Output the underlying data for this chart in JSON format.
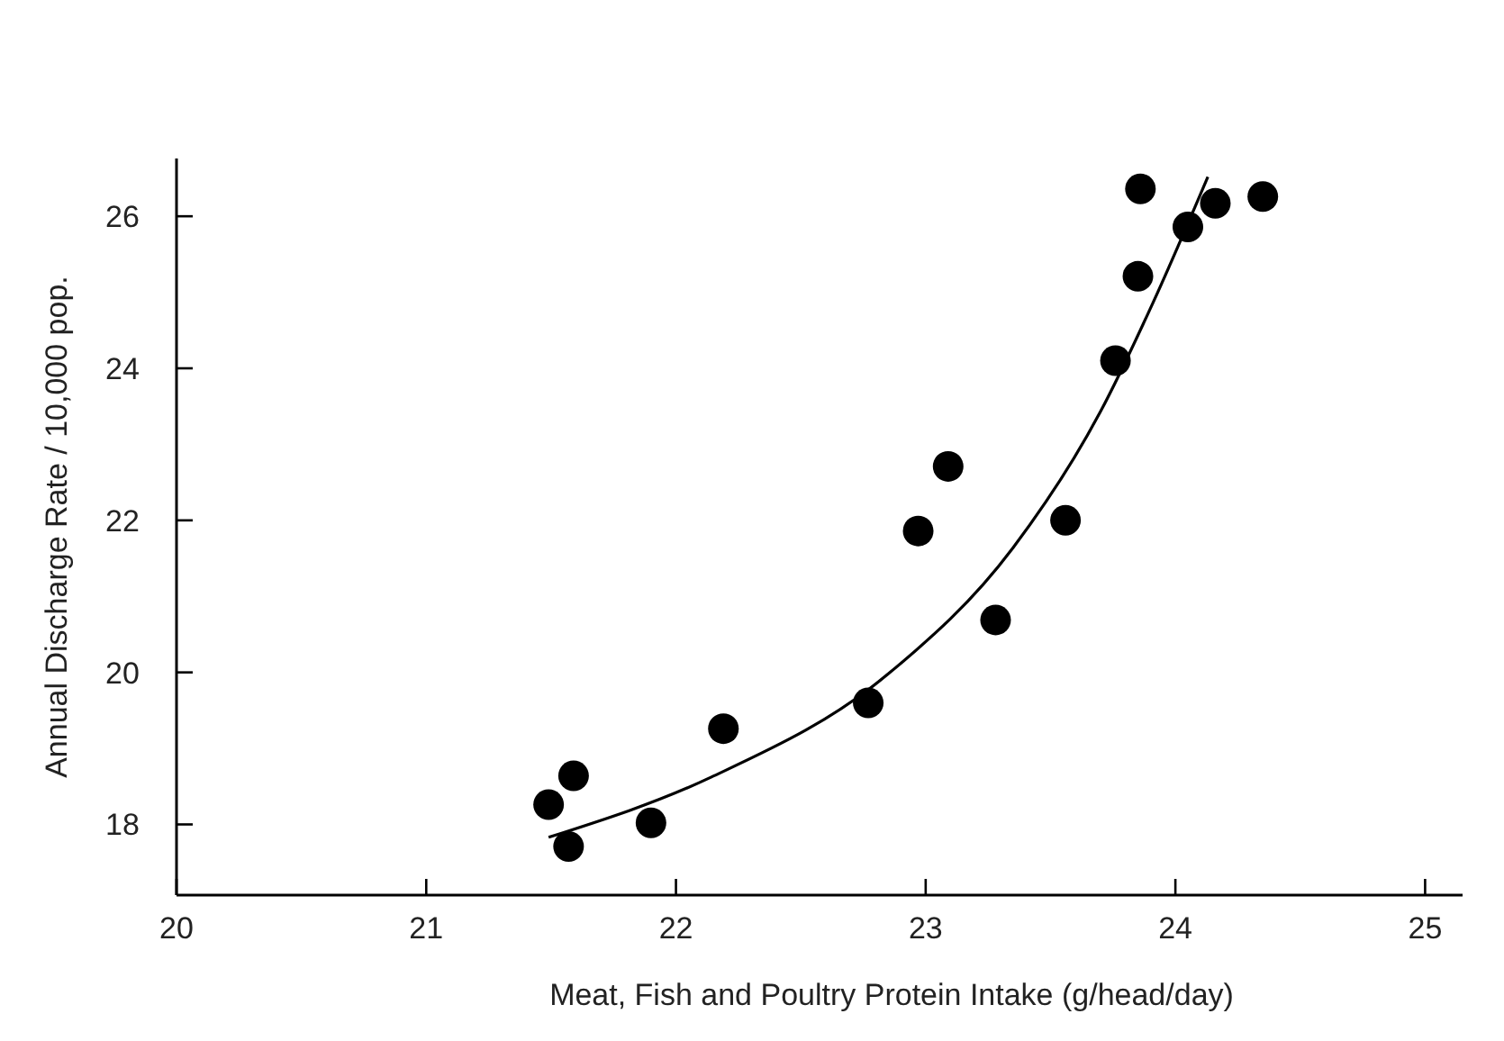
{
  "chart_data": {
    "type": "scatter",
    "xlabel": "Meat, Fish and Poultry Protein Intake (g/head/day)",
    "ylabel": "Annual Discharge Rate / 10,000 pop.",
    "xlim": [
      20,
      25.15
    ],
    "ylim": [
      17.07,
      26.76
    ],
    "xticks": [
      20,
      21,
      22,
      23,
      24,
      25
    ],
    "yticks": [
      18,
      20,
      22,
      24,
      26
    ],
    "grid": false,
    "series": [
      {
        "color": "#000000",
        "marker": "circle",
        "x": [
          21.49,
          21.59,
          21.57,
          21.9,
          22.19,
          22.77,
          22.97,
          23.09,
          23.28,
          23.56,
          23.76,
          23.86,
          23.85,
          24.05,
          24.16,
          24.35
        ],
        "values": [
          18.26,
          18.64,
          17.71,
          18.02,
          19.26,
          19.6,
          21.86,
          22.71,
          20.69,
          22.0,
          24.1,
          26.36,
          25.21,
          25.86,
          26.17,
          26.26
        ]
      },
      {
        "type": "line",
        "color": "#000000",
        "line_style": "solid",
        "x": [
          21.49,
          22.14,
          22.85,
          23.35,
          23.7,
          23.91,
          24.13
        ],
        "values": [
          17.83,
          18.62,
          19.98,
          21.64,
          23.43,
          24.86,
          26.52
        ]
      }
    ]
  }
}
